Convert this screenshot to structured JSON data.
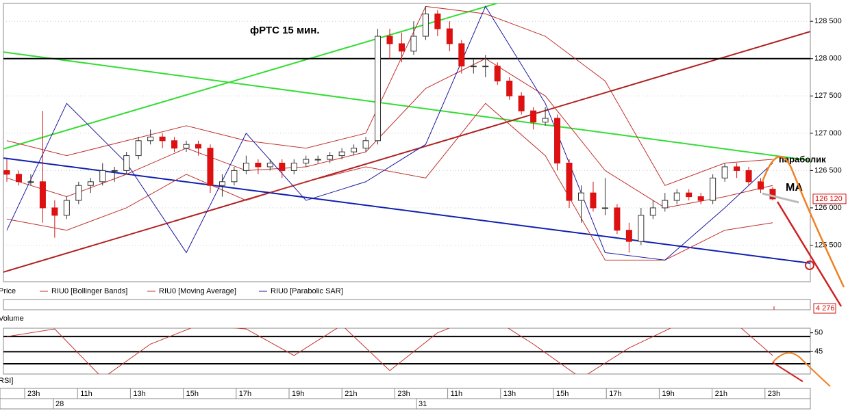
{
  "chart_data": {
    "type": "candlestick",
    "title": "фРТС   15 мин.",
    "annotations": [
      "параболик",
      "MA"
    ],
    "candles": [
      [
        126500,
        126650,
        126350,
        126450
      ],
      [
        126450,
        126500,
        126300,
        126350
      ],
      [
        126350,
        126450,
        126300,
        126350
      ],
      [
        126350,
        127300,
        125800,
        126000
      ],
      [
        126000,
        126100,
        125600,
        125900
      ],
      [
        125900,
        126150,
        125850,
        126100
      ],
      [
        126100,
        126350,
        126050,
        126300
      ],
      [
        126300,
        126400,
        126200,
        126350
      ],
      [
        126350,
        126600,
        126300,
        126500
      ],
      [
        126500,
        126550,
        126350,
        126500
      ],
      [
        126500,
        126750,
        126450,
        126700
      ],
      [
        126700,
        126950,
        126650,
        126900
      ],
      [
        126900,
        127050,
        126850,
        126950
      ],
      [
        126950,
        127000,
        126800,
        126900
      ],
      [
        126900,
        126950,
        126750,
        126800
      ],
      [
        126800,
        126900,
        126750,
        126850
      ],
      [
        126850,
        126900,
        126700,
        126800
      ],
      [
        126800,
        126850,
        126200,
        126300
      ],
      [
        126300,
        126450,
        126150,
        126350
      ],
      [
        126350,
        126550,
        126300,
        126500
      ],
      [
        126500,
        126700,
        126450,
        126600
      ],
      [
        126600,
        126650,
        126450,
        126550
      ],
      [
        126550,
        126650,
        126500,
        126600
      ],
      [
        126600,
        126650,
        126400,
        126500
      ],
      [
        126500,
        126650,
        126450,
        126600
      ],
      [
        126600,
        126700,
        126550,
        126650
      ],
      [
        126650,
        126700,
        126600,
        126650
      ],
      [
        126650,
        126750,
        126600,
        126700
      ],
      [
        126700,
        126800,
        126650,
        126750
      ],
      [
        126750,
        126850,
        126700,
        126800
      ],
      [
        126800,
        126950,
        126750,
        126900
      ],
      [
        126900,
        128400,
        126850,
        128300
      ],
      [
        128300,
        128400,
        128000,
        128200
      ],
      [
        128200,
        128350,
        127950,
        128100
      ],
      [
        128100,
        128500,
        128050,
        128300
      ],
      [
        128300,
        128700,
        128250,
        128600
      ],
      [
        128600,
        128650,
        128300,
        128400
      ],
      [
        128400,
        128500,
        128100,
        128200
      ],
      [
        128200,
        128250,
        127800,
        127900
      ],
      [
        127900,
        128000,
        127800,
        127900
      ],
      [
        127900,
        128050,
        127750,
        127900
      ],
      [
        127900,
        127950,
        127650,
        127700
      ],
      [
        127700,
        127750,
        127450,
        127500
      ],
      [
        127500,
        127550,
        127250,
        127300
      ],
      [
        127300,
        127350,
        127050,
        127150
      ],
      [
        127150,
        127350,
        127100,
        127200
      ],
      [
        127200,
        127250,
        126500,
        126600
      ],
      [
        126600,
        126650,
        126000,
        126100
      ],
      [
        126100,
        126300,
        125800,
        126200
      ],
      [
        126200,
        126350,
        125950,
        126000
      ],
      [
        126000,
        126400,
        125900,
        126000
      ],
      [
        126000,
        126050,
        125650,
        125700
      ],
      [
        125700,
        125800,
        125400,
        125550
      ],
      [
        125550,
        126000,
        125500,
        125900
      ],
      [
        125900,
        126100,
        125850,
        126000
      ],
      [
        126000,
        126200,
        125950,
        126100
      ],
      [
        126100,
        126250,
        126050,
        126200
      ],
      [
        126200,
        126250,
        126100,
        126150
      ],
      [
        126150,
        126200,
        126050,
        126100
      ],
      [
        126100,
        126450,
        126050,
        126400
      ],
      [
        126400,
        126600,
        126350,
        126550
      ],
      [
        126550,
        126600,
        126400,
        126500
      ],
      [
        126500,
        126550,
        126300,
        126350
      ],
      [
        126350,
        126400,
        126200,
        126250
      ],
      [
        126250,
        126280,
        126100,
        126120
      ]
    ],
    "price_name": "Price",
    "indicator_x": [
      0,
      5,
      10,
      15,
      20,
      25,
      30,
      35,
      40,
      45,
      50,
      55,
      60,
      64
    ],
    "series": [
      {
        "name": "RIU0 [Bollinger Bands]",
        "color": "#c0302a",
        "upper": [
          126900,
          126700,
          126900,
          127100,
          126900,
          126800,
          127000,
          128700,
          128600,
          128300,
          127700,
          126300,
          126600,
          126650
        ],
        "lower": [
          125850,
          125700,
          126000,
          126450,
          126100,
          126350,
          126550,
          126400,
          127400,
          126700,
          125300,
          125300,
          125700,
          125800
        ]
      },
      {
        "name": "RIU0 [Moving Average]",
        "color": "#c0302a",
        "values": [
          126400,
          126150,
          126450,
          126800,
          126500,
          126550,
          126750,
          127600,
          128000,
          127500,
          126500,
          126000,
          126150,
          126300
        ]
      },
      {
        "name": "RIU0 [Parabolic SAR]",
        "color": "#1a1aa0",
        "values": [
          125700,
          127400,
          126600,
          125400,
          127000,
          126100,
          126350,
          126850,
          128700,
          127400,
          125400,
          125300,
          126000,
          126600
        ]
      }
    ],
    "trendlines": [
      {
        "color": "#33dd33",
        "values": [
          126790,
          129980
        ]
      },
      {
        "color": "#33dd33",
        "values": [
          128088,
          126636
        ]
      },
      {
        "color": "#b02020",
        "values": [
          125139,
          128363
        ]
      },
      {
        "color": "#1020b0",
        "values": [
          126668,
          125258
        ]
      },
      {
        "color": "#000000",
        "values": [
          128000,
          128000
        ]
      }
    ],
    "last_price": 126120,
    "last_price_label": "126 120",
    "ylim": [
      125010,
      128740
    ],
    "yticks": [
      {
        "value": 125500,
        "label": "125 500"
      },
      {
        "value": 126000,
        "label": "126 000"
      },
      {
        "value": 126500,
        "label": "126 500"
      },
      {
        "value": 127000,
        "label": "127 000"
      },
      {
        "value": 127500,
        "label": "127 500"
      },
      {
        "value": 128000,
        "label": "128 000"
      },
      {
        "value": 128500,
        "label": "128 500"
      }
    ],
    "volume_name": "Volume",
    "volume_last": 4276,
    "volume_last_label": "4 276",
    "rsi_name": "RSI]",
    "rsi_x": [
      0,
      4,
      8,
      12,
      16,
      20,
      24,
      28,
      32,
      36,
      40,
      44,
      48,
      52,
      56,
      60,
      64
    ],
    "rsi_values": [
      49,
      51,
      38,
      47,
      52,
      51,
      44,
      52,
      40,
      50,
      55,
      47,
      38,
      46,
      52,
      55,
      44
    ],
    "rsi_ylim": [
      39.1,
      51.2
    ],
    "rsi_yticks": [
      50,
      45
    ],
    "rsi_levels": [
      49,
      45,
      41.8
    ],
    "time_labels": [
      "23h",
      "11h",
      "13h",
      "15h",
      "17h",
      "19h",
      "21h",
      "23h",
      "11h",
      "13h",
      "15h",
      "17h",
      "19h",
      "21h",
      "23h"
    ],
    "date_labels": [
      "28",
      "31"
    ]
  }
}
